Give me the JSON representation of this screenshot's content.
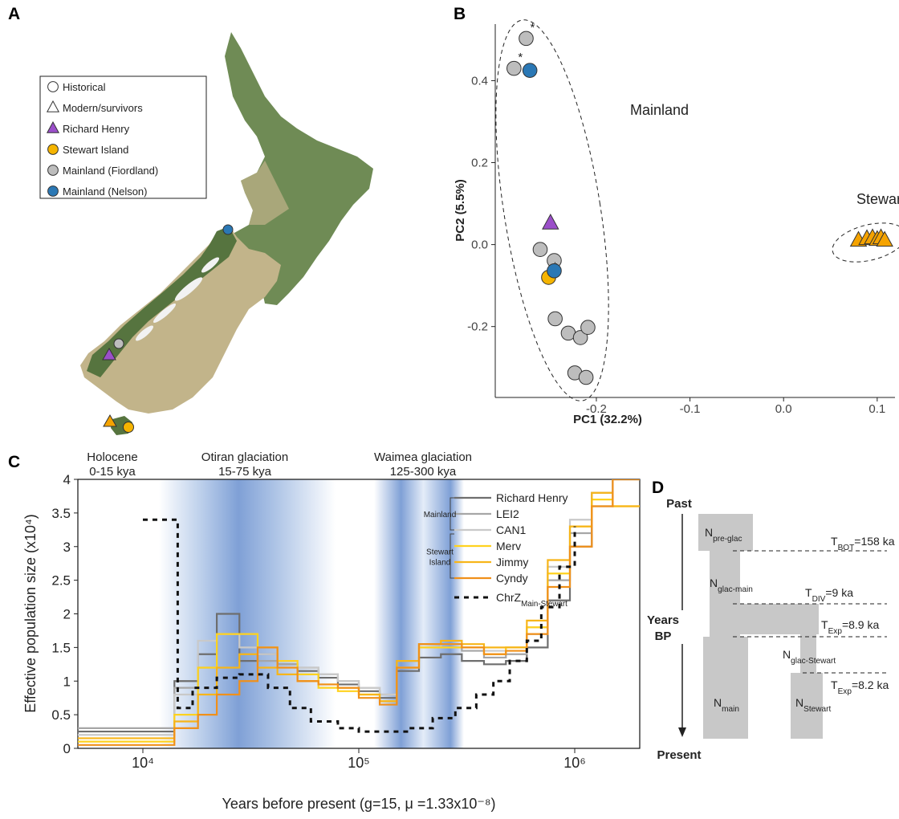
{
  "map": {
    "label": "A",
    "legend": [
      {
        "label": "Historical",
        "marker": "circle",
        "color": "#ffffff"
      },
      {
        "label": "Modern/survivors",
        "marker": "triangle",
        "color": "#ffffff"
      },
      {
        "label": "Richard Henry",
        "marker": "triangle",
        "color": "#9b4fc9"
      },
      {
        "label": "Stewart Island",
        "marker": "circle",
        "color": "#f5b400"
      },
      {
        "label": "Mainland (Fiordland)",
        "marker": "circle",
        "color": "#bdbdbd"
      },
      {
        "label": "Mainland (Nelson)",
        "marker": "circle",
        "color": "#2b78b5"
      }
    ]
  },
  "chart_data": [
    {
      "type": "scatter",
      "panel": "B",
      "x_label": "PC1 (32.2%)",
      "y_label": "PC2 (5.5%)",
      "xlim": [
        -0.308,
        0.119
      ],
      "ylim": [
        -0.373,
        0.538
      ],
      "xticks": [
        -0.2,
        -0.1,
        {
          "value": 0,
          "label": "0.0"
        },
        0.1
      ],
      "yticks": [
        -0.2,
        {
          "value": 0,
          "label": "0.0"
        },
        0.2,
        0.4
      ],
      "annotations": [
        "Mainland",
        "Stewart Island"
      ],
      "series": [
        {
          "marker": "circle",
          "color": "#bdbdbd",
          "x": [
            -0.275,
            -0.288,
            -0.26,
            -0.245,
            -0.244,
            -0.23,
            -0.217,
            -0.209,
            -0.223,
            -0.211
          ],
          "y": [
            0.503,
            0.43,
            -0.012,
            -0.039,
            -0.181,
            -0.216,
            -0.227,
            -0.202,
            -0.313,
            -0.324
          ],
          "point_labels": [
            "*",
            "*",
            null,
            null,
            null,
            null,
            null,
            null,
            null,
            null
          ]
        },
        {
          "marker": "circle",
          "color": "#f5b400",
          "x": [
            -0.251
          ],
          "y": [
            -0.08
          ],
          "point_labels": [
            "*"
          ]
        },
        {
          "marker": "circle",
          "color": "#2b78b5",
          "x": [
            -0.271,
            -0.245
          ],
          "y": [
            0.425,
            -0.064
          ]
        },
        {
          "marker": "triangle",
          "color": "#9b4fc9",
          "x": [
            -0.249
          ],
          "y": [
            0.052
          ]
        },
        {
          "marker": "triangle",
          "color": "#f5a300",
          "x": [
            0.08,
            0.089,
            0.095,
            0.1,
            0.104,
            0.108
          ],
          "y": [
            0.01,
            0.014,
            0.016,
            0.012,
            0.016,
            0.01
          ]
        }
      ]
    },
    {
      "type": "line",
      "panel": "C",
      "drawstyle": "steps",
      "x_scale": "log",
      "x_label": "Years before present (g=15, μ =1.33x10⁻⁸)",
      "y_label": "Effective population size (x10⁴)",
      "xlim": [
        5000,
        2000000
      ],
      "ylim": [
        0,
        4
      ],
      "xticks": [
        {
          "value": 10000,
          "label": "10⁴"
        },
        {
          "value": 100000,
          "label": "10⁵"
        },
        {
          "value": 1000000,
          "label": "10⁶"
        }
      ],
      "yticks": [
        0,
        0.5,
        1,
        1.5,
        2,
        2.5,
        3,
        3.5,
        4
      ],
      "periods": [
        {
          "name": "Holocene",
          "range": "0-15 kya"
        },
        {
          "name": "Otiran glaciation",
          "range": "15-75 kya"
        },
        {
          "name": "Waimea glaciation",
          "range": "125-300 kya"
        }
      ],
      "legend_groups": [
        [
          "Mainland"
        ],
        [
          "Stewart",
          "Island"
        ]
      ],
      "x": [
        5000,
        14000,
        18000,
        22000,
        28000,
        34000,
        42000,
        52000,
        65000,
        80000,
        100000,
        125000,
        150000,
        190000,
        240000,
        300000,
        380000,
        480000,
        600000,
        750000,
        950000,
        1200000,
        1500000,
        2000000
      ],
      "series": [
        {
          "name": "Richard Henry",
          "color": "#6e6e6e",
          "values": [
            0.25,
            1.0,
            1.4,
            2.0,
            1.3,
            1.4,
            1.25,
            1.15,
            1.05,
            0.95,
            0.85,
            0.75,
            1.15,
            1.35,
            1.4,
            1.3,
            1.25,
            1.3,
            1.5,
            2.2,
            3.0,
            3.8,
            4.0,
            4.0
          ]
        },
        {
          "name": "LEI2",
          "color": "#a6a6a6",
          "values": [
            0.3,
            0.9,
            1.2,
            1.7,
            1.5,
            1.3,
            1.25,
            1.2,
            1.1,
            1.0,
            0.9,
            0.8,
            1.3,
            1.55,
            1.5,
            1.45,
            1.35,
            1.4,
            1.7,
            2.5,
            3.2,
            3.6,
            4.0,
            4.0
          ]
        },
        {
          "name": "CAN1",
          "color": "#c9c9c9",
          "values": [
            0.2,
            0.8,
            1.6,
            1.7,
            1.5,
            1.4,
            1.3,
            1.2,
            1.1,
            1.0,
            0.9,
            0.8,
            1.2,
            1.5,
            1.55,
            1.5,
            1.45,
            1.5,
            1.8,
            2.7,
            3.4,
            3.8,
            4.0,
            4.0
          ]
        },
        {
          "name": "Merv",
          "color": "#ffd21f",
          "values": [
            0.1,
            0.5,
            1.2,
            1.7,
            1.7,
            1.5,
            1.3,
            1.1,
            0.9,
            0.85,
            0.8,
            0.7,
            1.2,
            1.5,
            1.5,
            1.5,
            1.4,
            1.5,
            1.8,
            2.6,
            3.3,
            3.7,
            3.6,
            3.6
          ]
        },
        {
          "name": "Jimmy",
          "color": "#f7b519",
          "values": [
            0.15,
            0.4,
            0.8,
            1.2,
            1.4,
            1.2,
            1.1,
            1.0,
            0.95,
            0.9,
            0.8,
            0.7,
            1.3,
            1.55,
            1.6,
            1.55,
            1.5,
            1.5,
            1.9,
            2.8,
            3.3,
            3.8,
            3.6,
            3.6
          ]
        },
        {
          "name": "Cyndy",
          "color": "#f0901a",
          "values": [
            0.05,
            0.3,
            0.5,
            0.8,
            1.0,
            1.5,
            1.2,
            1.0,
            0.95,
            0.9,
            0.75,
            0.65,
            1.2,
            1.55,
            1.55,
            1.5,
            1.4,
            1.45,
            1.7,
            2.4,
            3.0,
            3.6,
            4.0,
            4.0
          ]
        },
        {
          "name": "ChrZ",
          "subscript": "Main-Stewart",
          "color": "#111111",
          "dashed": true,
          "x": [
            10000,
            14500,
            17000,
            22000,
            28000,
            38000,
            48000,
            60000,
            80000,
            100000,
            130000,
            170000,
            220000,
            280000,
            350000,
            420000,
            500000,
            600000,
            700000,
            850000,
            1000000
          ],
          "values": [
            3.4,
            0.6,
            0.9,
            1.05,
            1.1,
            0.9,
            0.6,
            0.4,
            0.3,
            0.25,
            0.25,
            0.3,
            0.45,
            0.6,
            0.8,
            1.0,
            1.3,
            1.6,
            2.1,
            2.7,
            3.3
          ]
        }
      ]
    }
  ],
  "diagram": {
    "label": "D",
    "time_axis": {
      "top": "Past",
      "middle": [
        "Years",
        "BP"
      ],
      "bottom": "Present"
    },
    "populations": [
      {
        "base": "N",
        "sub": "pre-glac"
      },
      {
        "base": "N",
        "sub": "glac-main"
      },
      {
        "base": "N",
        "sub": "glac-Stewart"
      },
      {
        "base": "N",
        "sub": "main"
      },
      {
        "base": "N",
        "sub": "Stewart"
      }
    ],
    "events": [
      {
        "base": "T",
        "sub": "BOT",
        "suffix": "=158 ka"
      },
      {
        "base": "T",
        "sub": "DIV",
        "suffix": "=9 ka"
      },
      {
        "base": "T",
        "sub": "Exp",
        "suffix": "=8.9 ka"
      },
      {
        "base": "T",
        "sub": "Exp",
        "suffix": "=8.2 ka"
      }
    ]
  }
}
